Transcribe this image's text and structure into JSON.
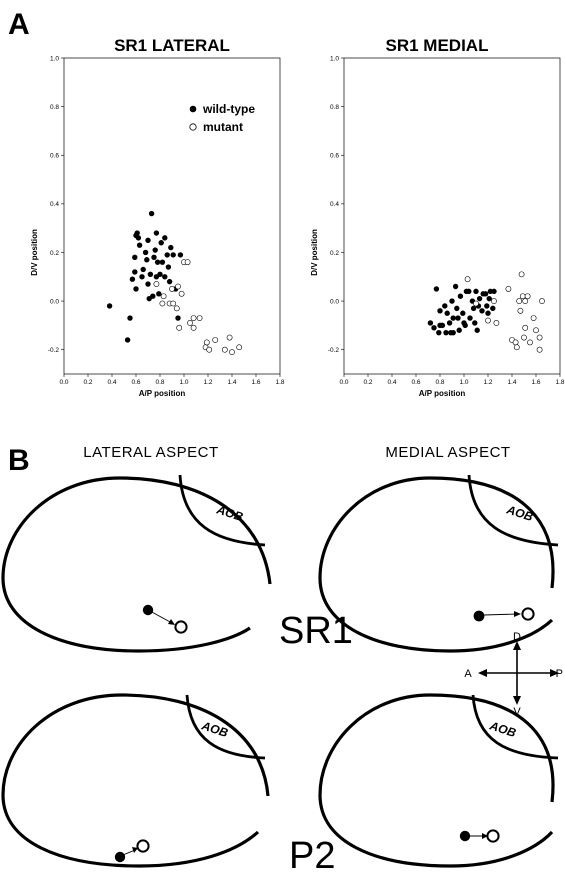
{
  "panel_a": {
    "letter": "A"
  },
  "panel_b": {
    "letter": "B"
  },
  "legend": {
    "wild_type": "wild-type",
    "mutant": "mutant"
  },
  "chart_data": [
    {
      "type": "scatter",
      "title": "SR1 LATERAL",
      "xlabel": "A/P position",
      "ylabel": "D/V position",
      "xlim": [
        0.0,
        1.8
      ],
      "ylim": [
        -0.3,
        1.0
      ],
      "x_ticks": [
        "0.0",
        "0.2",
        "0.4",
        "0.6",
        "0.8",
        "1.0",
        "1.2",
        "1.4",
        "1.6",
        "1.8"
      ],
      "y_ticks": [
        "-0.2",
        "0.0",
        "0.2",
        "0.4",
        "0.6",
        "0.8",
        "1.0"
      ],
      "legend_position": "top-right",
      "series": [
        {
          "name": "wild-type",
          "marker": "filled",
          "points": [
            [
              0.38,
              -0.02
            ],
            [
              0.53,
              -0.16
            ],
            [
              0.55,
              -0.07
            ],
            [
              0.57,
              0.09
            ],
            [
              0.59,
              0.12
            ],
            [
              0.59,
              0.18
            ],
            [
              0.6,
              0.27
            ],
            [
              0.6,
              0.05
            ],
            [
              0.61,
              0.28
            ],
            [
              0.62,
              0.26
            ],
            [
              0.63,
              0.23
            ],
            [
              0.65,
              0.1
            ],
            [
              0.66,
              0.13
            ],
            [
              0.68,
              0.2
            ],
            [
              0.69,
              0.17
            ],
            [
              0.7,
              0.07
            ],
            [
              0.7,
              0.25
            ],
            [
              0.71,
              0.01
            ],
            [
              0.72,
              0.11
            ],
            [
              0.73,
              0.36
            ],
            [
              0.74,
              0.02
            ],
            [
              0.75,
              0.18
            ],
            [
              0.76,
              0.21
            ],
            [
              0.77,
              0.28
            ],
            [
              0.77,
              0.1
            ],
            [
              0.78,
              0.16
            ],
            [
              0.79,
              0.03
            ],
            [
              0.8,
              0.11
            ],
            [
              0.81,
              0.24
            ],
            [
              0.82,
              0.16
            ],
            [
              0.84,
              0.26
            ],
            [
              0.84,
              0.1
            ],
            [
              0.86,
              0.19
            ],
            [
              0.87,
              0.14
            ],
            [
              0.88,
              0.08
            ],
            [
              0.89,
              0.22
            ],
            [
              0.91,
              0.19
            ],
            [
              0.93,
              0.05
            ],
            [
              0.95,
              -0.07
            ],
            [
              0.97,
              0.19
            ]
          ]
        },
        {
          "name": "mutant",
          "marker": "open",
          "points": [
            [
              0.77,
              0.07
            ],
            [
              0.82,
              -0.01
            ],
            [
              0.83,
              0.02
            ],
            [
              0.88,
              -0.01
            ],
            [
              0.9,
              0.05
            ],
            [
              0.91,
              -0.01
            ],
            [
              0.94,
              -0.03
            ],
            [
              0.95,
              0.06
            ],
            [
              0.96,
              -0.11
            ],
            [
              0.98,
              0.03
            ],
            [
              1.0,
              0.16
            ],
            [
              1.03,
              0.16
            ],
            [
              1.05,
              -0.09
            ],
            [
              1.08,
              -0.07
            ],
            [
              1.08,
              -0.11
            ],
            [
              1.13,
              -0.07
            ],
            [
              1.18,
              -0.19
            ],
            [
              1.19,
              -0.17
            ],
            [
              1.21,
              -0.2
            ],
            [
              1.26,
              -0.16
            ],
            [
              1.34,
              -0.2
            ],
            [
              1.38,
              -0.15
            ],
            [
              1.4,
              -0.21
            ],
            [
              1.46,
              -0.19
            ]
          ]
        }
      ]
    },
    {
      "type": "scatter",
      "title": "SR1 MEDIAL",
      "xlabel": "A/P position",
      "ylabel": "D/V position",
      "xlim": [
        0.0,
        1.8
      ],
      "ylim": [
        -0.3,
        1.0
      ],
      "x_ticks": [
        "0.0",
        "0.2",
        "0.4",
        "0.6",
        "0.8",
        "1.0",
        "1.2",
        "1.4",
        "1.6",
        "1.8"
      ],
      "y_ticks": [
        "-0.2",
        "0.0",
        "0.2",
        "0.4",
        "0.6",
        "0.8",
        "1.0"
      ],
      "series": [
        {
          "name": "wild-type",
          "marker": "filled",
          "points": [
            [
              0.72,
              -0.09
            ],
            [
              0.75,
              -0.11
            ],
            [
              0.77,
              0.05
            ],
            [
              0.79,
              -0.13
            ],
            [
              0.8,
              -0.04
            ],
            [
              0.8,
              -0.1
            ],
            [
              0.82,
              -0.1
            ],
            [
              0.84,
              -0.02
            ],
            [
              0.85,
              -0.13
            ],
            [
              0.86,
              -0.05
            ],
            [
              0.88,
              -0.09
            ],
            [
              0.89,
              -0.13
            ],
            [
              0.9,
              0.0
            ],
            [
              0.91,
              -0.07
            ],
            [
              0.91,
              -0.13
            ],
            [
              0.93,
              0.06
            ],
            [
              0.94,
              -0.03
            ],
            [
              0.95,
              -0.07
            ],
            [
              0.96,
              -0.12
            ],
            [
              0.97,
              0.02
            ],
            [
              0.99,
              -0.05
            ],
            [
              1.0,
              -0.09
            ],
            [
              1.01,
              -0.1
            ],
            [
              1.02,
              0.04
            ],
            [
              1.04,
              0.04
            ],
            [
              1.05,
              -0.07
            ],
            [
              1.07,
              0.0
            ],
            [
              1.08,
              -0.03
            ],
            [
              1.09,
              -0.09
            ],
            [
              1.1,
              0.04
            ],
            [
              1.11,
              -0.12
            ],
            [
              1.12,
              -0.02
            ],
            [
              1.13,
              0.01
            ],
            [
              1.15,
              -0.04
            ],
            [
              1.16,
              0.03
            ],
            [
              1.18,
              0.03
            ],
            [
              1.19,
              -0.02
            ],
            [
              1.2,
              -0.05
            ],
            [
              1.21,
              0.01
            ],
            [
              1.22,
              0.04
            ],
            [
              1.24,
              -0.03
            ],
            [
              1.25,
              0.04
            ]
          ]
        },
        {
          "name": "mutant",
          "marker": "open",
          "points": [
            [
              1.03,
              0.09
            ],
            [
              1.1,
              -0.01
            ],
            [
              1.2,
              -0.08
            ],
            [
              1.25,
              0.0
            ],
            [
              1.27,
              -0.09
            ],
            [
              1.37,
              0.05
            ],
            [
              1.4,
              -0.16
            ],
            [
              1.43,
              -0.17
            ],
            [
              1.44,
              -0.19
            ],
            [
              1.46,
              0.0
            ],
            [
              1.47,
              -0.04
            ],
            [
              1.48,
              0.11
            ],
            [
              1.49,
              0.02
            ],
            [
              1.5,
              -0.15
            ],
            [
              1.51,
              0.0
            ],
            [
              1.51,
              -0.11
            ],
            [
              1.53,
              0.02
            ],
            [
              1.55,
              -0.17
            ],
            [
              1.58,
              -0.07
            ],
            [
              1.6,
              -0.12
            ],
            [
              1.63,
              -0.2
            ],
            [
              1.63,
              -0.15
            ],
            [
              1.65,
              0.0
            ]
          ]
        }
      ]
    }
  ],
  "schematics": {
    "lateral_aspect": "LATERAL ASPECT",
    "medial_aspect": "MEDIAL ASPECT",
    "aob": "AOB",
    "sr1": "SR1",
    "p2": "P2",
    "compass": {
      "dorsal": "D",
      "ventral": "V",
      "anterior": "A",
      "posterior": "P"
    }
  }
}
